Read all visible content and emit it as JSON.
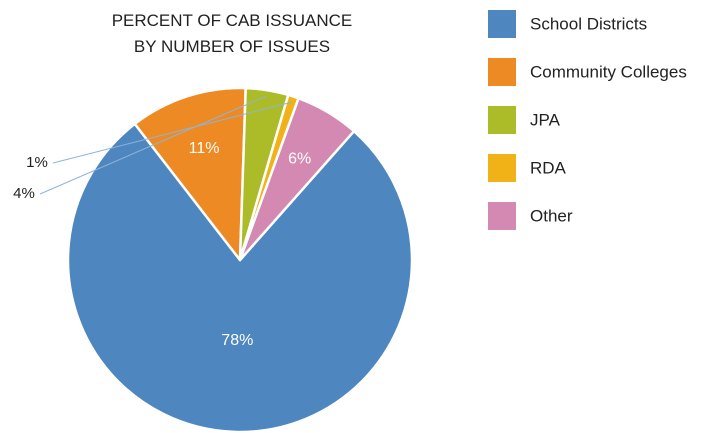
{
  "chart_data": {
    "type": "pie",
    "title": [
      "PERCENT OF CAB ISSUANCE",
      "BY NUMBER OF ISSUES"
    ],
    "categories": [
      "School Districts",
      "Community Colleges",
      "JPA",
      "RDA",
      "Other"
    ],
    "values": [
      78,
      11,
      4,
      1,
      6
    ],
    "labels": [
      "78%",
      "11%",
      "4%",
      "1%",
      "6%"
    ],
    "colors": [
      "#4e86c0",
      "#ee8a23",
      "#acbc28",
      "#f0b217",
      "#d389b2"
    ],
    "legend_position": "right"
  }
}
